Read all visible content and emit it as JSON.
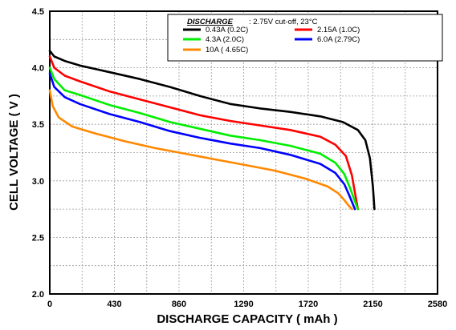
{
  "chart_data": {
    "type": "line",
    "xlabel": "DISCHARGE CAPACITY ( mAh )",
    "ylabel": "CELL VOLTAGE ( V )",
    "xlim": [
      0,
      2580
    ],
    "ylim": [
      2.0,
      4.5
    ],
    "xticks": [
      0,
      430,
      860,
      1290,
      1720,
      2150,
      2580
    ],
    "yticks": [
      "2.0",
      "2.5",
      "3.0",
      "3.5",
      "4.0",
      "4.5"
    ],
    "grid": true,
    "legend": {
      "position": "top-right",
      "header_label": "DISCHARGE",
      "header_note": ": 2.75V cut-off, 23°C"
    },
    "series": [
      {
        "name": "0.43A (0.2C)",
        "color": "#000000",
        "x": [
          0,
          30,
          100,
          200,
          400,
          600,
          800,
          1000,
          1200,
          1400,
          1600,
          1800,
          1950,
          2050,
          2100,
          2130,
          2150,
          2160
        ],
        "y": [
          4.15,
          4.1,
          4.06,
          4.02,
          3.96,
          3.9,
          3.83,
          3.75,
          3.68,
          3.64,
          3.61,
          3.57,
          3.52,
          3.45,
          3.36,
          3.2,
          2.95,
          2.75
        ]
      },
      {
        "name": "2.15A (1.0C)",
        "color": "#ff0000",
        "x": [
          0,
          30,
          100,
          200,
          400,
          600,
          800,
          1000,
          1200,
          1400,
          1600,
          1800,
          1900,
          1970,
          2010,
          2030,
          2050
        ],
        "y": [
          4.1,
          4.0,
          3.93,
          3.88,
          3.79,
          3.72,
          3.65,
          3.58,
          3.53,
          3.49,
          3.45,
          3.39,
          3.32,
          3.22,
          3.05,
          2.9,
          2.75
        ]
      },
      {
        "name": "4.3A (2.0C)",
        "color": "#00ee00",
        "x": [
          0,
          30,
          100,
          200,
          400,
          600,
          800,
          1000,
          1200,
          1400,
          1600,
          1800,
          1900,
          1960,
          2000,
          2030,
          2050
        ],
        "y": [
          4.0,
          3.9,
          3.8,
          3.76,
          3.67,
          3.6,
          3.52,
          3.46,
          3.4,
          3.36,
          3.31,
          3.24,
          3.16,
          3.06,
          2.93,
          2.82,
          2.75
        ]
      },
      {
        "name": "6.0A (2.79C)",
        "color": "#0000ff",
        "x": [
          0,
          30,
          100,
          200,
          400,
          600,
          800,
          1000,
          1200,
          1400,
          1600,
          1800,
          1900,
          1960,
          1990,
          2015,
          2030
        ],
        "y": [
          3.95,
          3.83,
          3.74,
          3.68,
          3.59,
          3.52,
          3.44,
          3.38,
          3.33,
          3.29,
          3.23,
          3.15,
          3.07,
          2.97,
          2.88,
          2.8,
          2.75
        ]
      },
      {
        "name": "10A ( 4.65C)",
        "color": "#ff8800",
        "x": [
          0,
          20,
          60,
          150,
          300,
          500,
          700,
          900,
          1100,
          1300,
          1500,
          1700,
          1850,
          1920,
          1960,
          1990,
          2010
        ],
        "y": [
          3.8,
          3.66,
          3.56,
          3.48,
          3.42,
          3.35,
          3.29,
          3.24,
          3.19,
          3.14,
          3.09,
          3.02,
          2.95,
          2.89,
          2.83,
          2.78,
          2.75
        ]
      }
    ]
  }
}
